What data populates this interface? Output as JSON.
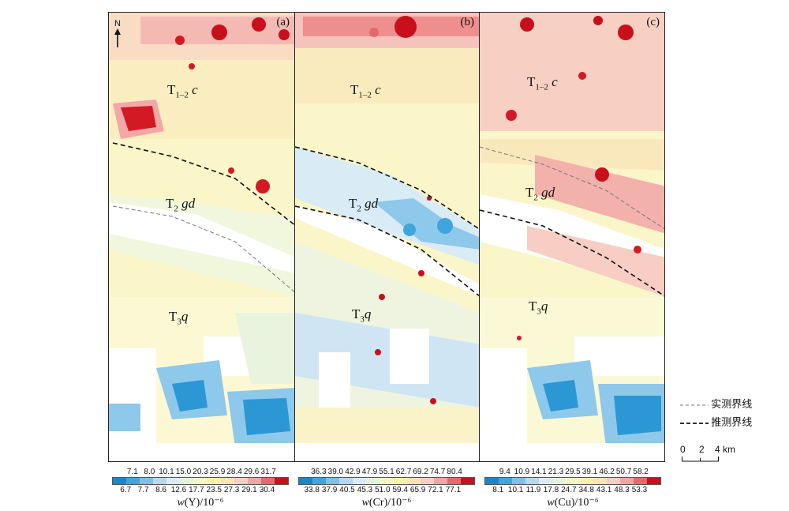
{
  "panels": [
    {
      "letter": "(a)",
      "element": "Y",
      "ticks_top": [
        "7.1",
        "8.0",
        "10.1",
        "15.0",
        "20.3",
        "25.9",
        "28.4",
        "29.6",
        "31.7"
      ],
      "ticks_bottom": [
        "6.7",
        "7.7",
        "8.6",
        "12.6",
        "17.7",
        "23.5",
        "27.3",
        "29.1",
        "30.4"
      ]
    },
    {
      "letter": "(b)",
      "element": "Cr",
      "ticks_top": [
        "36.3",
        "39.0",
        "42.9",
        "47.9",
        "55.1",
        "62.7",
        "69.2",
        "74.7",
        "80.4"
      ],
      "ticks_bottom": [
        "33.8",
        "37.9",
        "40.5",
        "45.3",
        "51.0",
        "59.4",
        "65.9",
        "72.1",
        "77.1"
      ]
    },
    {
      "letter": "(c)",
      "element": "Cu",
      "ticks_top": [
        "9.4",
        "10.9",
        "14.1",
        "21.3",
        "29.5",
        "39.1",
        "46.2",
        "50.7",
        "58.2"
      ],
      "ticks_bottom": [
        "8.1",
        "10.1",
        "11.9",
        "17.8",
        "24.7",
        "34.8",
        "43.1",
        "48.3",
        "53.3"
      ]
    }
  ],
  "units": "/10⁻⁶",
  "north_label": "N",
  "strata": {
    "c_main": "T",
    "c_sub": "1–2",
    "c_letter": "c",
    "gd_main": "T",
    "gd_sub": "2",
    "gd_letter": "gd",
    "q_main": "T",
    "q_sub": "3",
    "q_letter": "q"
  },
  "boundary_legend": {
    "measured": "实测界线",
    "inferred": "推测界线"
  },
  "scale": {
    "labels": [
      "0",
      "2",
      "4"
    ],
    "unit": "km"
  },
  "colors": {
    "palette": [
      "#1a86c9",
      "#3ea5dd",
      "#7ec0e6",
      "#b5d8ef",
      "#dbebf4",
      "#e4f3dc",
      "#f4f7c4",
      "#fbf1a9",
      "#fbe3b4",
      "#f7cdc4",
      "#f2a3a4",
      "#e6686c",
      "#c8101c"
    ]
  }
}
